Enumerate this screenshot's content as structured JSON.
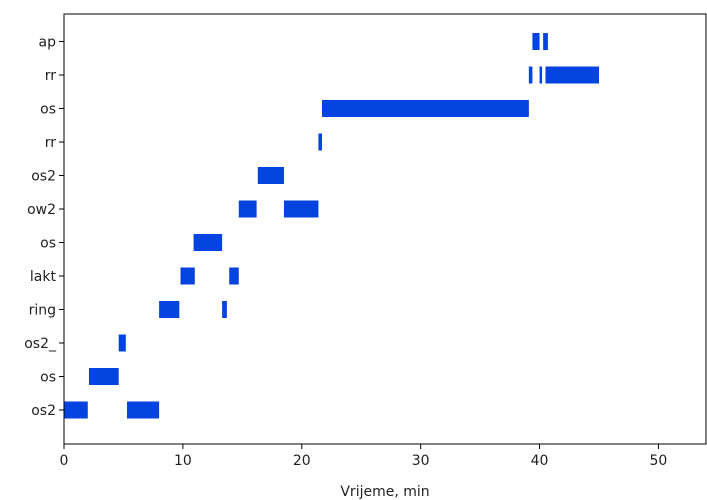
{
  "chart_data": {
    "type": "timeline",
    "title": "",
    "xlabel": "Vrijeme, min",
    "ylabel": "",
    "xlim": [
      0,
      54
    ],
    "x_ticks": [
      0,
      10,
      20,
      30,
      40,
      50
    ],
    "grid": false,
    "bar_color": "#0343df",
    "rows": [
      {
        "label": "os2",
        "intervals": [
          [
            0.0,
            2.0
          ],
          [
            5.3,
            8.0
          ]
        ]
      },
      {
        "label": "os",
        "intervals": [
          [
            2.1,
            4.6
          ]
        ]
      },
      {
        "label": "os2_",
        "intervals": [
          [
            4.6,
            5.2
          ]
        ]
      },
      {
        "label": "ring",
        "intervals": [
          [
            8.0,
            9.7
          ],
          [
            13.3,
            13.7
          ]
        ]
      },
      {
        "label": "lakt",
        "intervals": [
          [
            9.8,
            11.0
          ],
          [
            13.9,
            14.7
          ]
        ]
      },
      {
        "label": "os",
        "intervals": [
          [
            10.9,
            13.3
          ]
        ]
      },
      {
        "label": "ow2",
        "intervals": [
          [
            14.7,
            16.2
          ],
          [
            18.5,
            21.4
          ]
        ]
      },
      {
        "label": "os2",
        "intervals": [
          [
            16.3,
            18.5
          ]
        ]
      },
      {
        "label": "rr",
        "intervals": [
          [
            21.4,
            21.7
          ]
        ]
      },
      {
        "label": "os",
        "intervals": [
          [
            21.7,
            39.1
          ]
        ]
      },
      {
        "label": "rr",
        "intervals": [
          [
            39.1,
            39.4
          ],
          [
            40.0,
            40.2
          ],
          [
            40.5,
            45.0
          ]
        ]
      },
      {
        "label": "ap",
        "intervals": [
          [
            39.4,
            40.0
          ],
          [
            40.3,
            40.7
          ]
        ]
      }
    ]
  }
}
